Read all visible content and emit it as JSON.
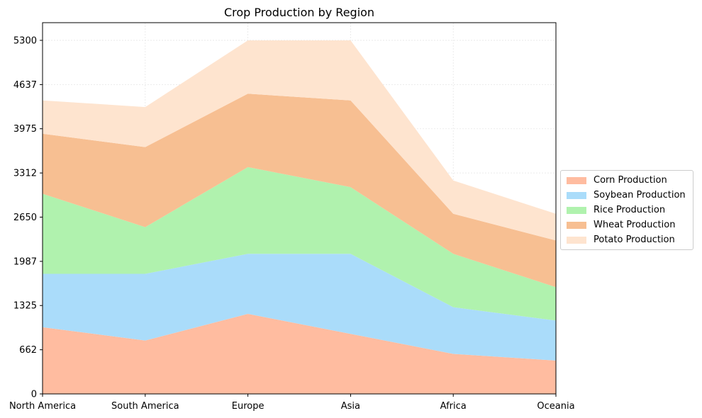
{
  "chart_data": {
    "type": "area",
    "stacked": true,
    "title": "Crop Production by Region",
    "xlabel": "",
    "ylabel": "",
    "categories": [
      "North America",
      "South America",
      "Europe",
      "Asia",
      "Africa",
      "Oceania"
    ],
    "yticks": [
      0,
      662,
      1325,
      1987,
      2650,
      3312,
      3975,
      4637,
      5300
    ],
    "ylim": [
      0,
      5565
    ],
    "grid": true,
    "legend_position": "right",
    "series": [
      {
        "name": "Corn Production",
        "color": "#ffbca0",
        "values": [
          1000,
          800,
          1200,
          900,
          600,
          500
        ]
      },
      {
        "name": "Soybean Production",
        "color": "#aadcfa",
        "values": [
          800,
          1000,
          900,
          1200,
          700,
          600
        ]
      },
      {
        "name": "Rice Production",
        "color": "#b0f2ae",
        "values": [
          1200,
          700,
          1300,
          1000,
          800,
          500
        ]
      },
      {
        "name": "Wheat Production",
        "color": "#f7bf92",
        "values": [
          900,
          1200,
          1100,
          1300,
          600,
          700
        ]
      },
      {
        "name": "Potato Production",
        "color": "#fee4cf",
        "values": [
          500,
          600,
          800,
          900,
          500,
          400
        ]
      }
    ]
  }
}
